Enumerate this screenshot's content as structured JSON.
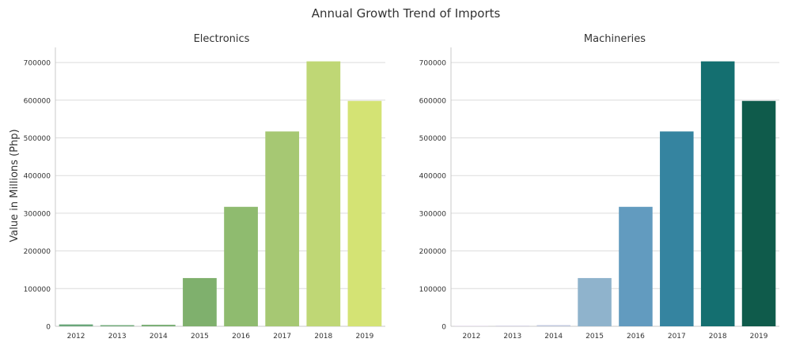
{
  "figure": {
    "title": "Annual Growth Trend of Imports"
  },
  "chart_data": [
    {
      "type": "bar",
      "title": "Electronics",
      "xlabel": "",
      "ylabel": "Value in Millions (Php)",
      "categories": [
        "2012",
        "2013",
        "2014",
        "2015",
        "2016",
        "2017",
        "2018",
        "2019"
      ],
      "values": [
        5000,
        3000,
        4000,
        128000,
        317000,
        517000,
        703000,
        598000
      ],
      "ylim": [
        0,
        740000
      ],
      "yticks": [
        0,
        100000,
        200000,
        300000,
        400000,
        500000,
        600000,
        700000
      ],
      "grid": "horizontal",
      "colors": [
        "#6aa77a",
        "#6fa977",
        "#76ad72",
        "#7fb06d",
        "#8fbb6f",
        "#a6c873",
        "#bfd775",
        "#d4e374"
      ]
    },
    {
      "type": "bar",
      "title": "Machineries",
      "xlabel": "",
      "ylabel": "",
      "categories": [
        "2012",
        "2013",
        "2014",
        "2015",
        "2016",
        "2017",
        "2018",
        "2019"
      ],
      "values": [
        2000,
        2000,
        3000,
        128000,
        317000,
        517000,
        703000,
        598000
      ],
      "ylim": [
        0,
        740000
      ],
      "yticks": [
        0,
        100000,
        200000,
        300000,
        400000,
        500000,
        600000,
        700000
      ],
      "grid": "horizontal",
      "colors": [
        "#e9e1ef",
        "#d8d7e8",
        "#bfc7dd",
        "#8fb3cc",
        "#629bbf",
        "#3584a0",
        "#146f70",
        "#0f5b4b"
      ]
    }
  ]
}
